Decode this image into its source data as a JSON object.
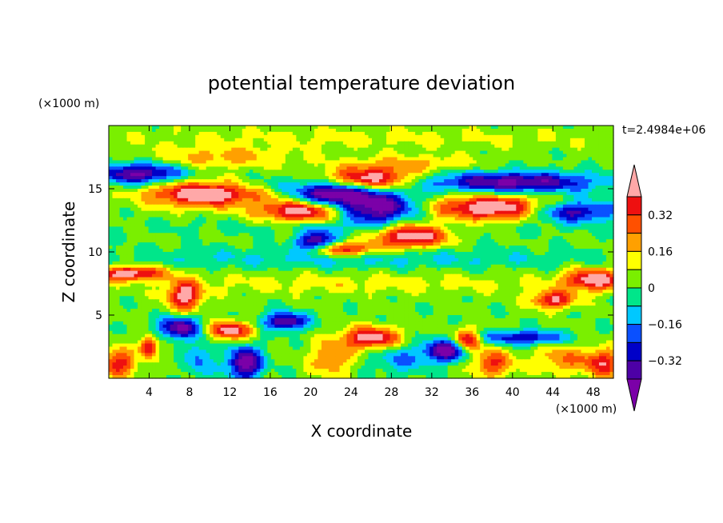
{
  "chart_data": {
    "type": "heatmap",
    "title": "potential temperature deviation",
    "xlabel": "X coordinate",
    "ylabel": "Z coordinate",
    "x_unit": "(×1000 m)",
    "z_unit": "(×1000 m)",
    "time_label": "t=2.4984e+06",
    "xlim": [
      0,
      50
    ],
    "ylim": [
      0,
      20
    ],
    "x_ticks": [
      4,
      8,
      12,
      16,
      20,
      24,
      28,
      32,
      36,
      40,
      44,
      48
    ],
    "x_tick_labels": [
      "4",
      "8",
      "12",
      "16",
      "20",
      "24",
      "28",
      "32",
      "36",
      "40",
      "44",
      "48"
    ],
    "y_ticks": [
      5,
      10,
      15
    ],
    "y_tick_labels": [
      "5",
      "10",
      "15"
    ],
    "colorbar": {
      "levels": [
        -0.4,
        -0.32,
        -0.24,
        -0.16,
        -0.08,
        0,
        0.08,
        0.16,
        0.24,
        0.32,
        0.4
      ],
      "labeled_levels": [
        0.32,
        0.16,
        0,
        -0.16,
        -0.32
      ],
      "labels": [
        "0.32",
        "0.16",
        "0",
        "−0.16",
        "−0.32"
      ],
      "colors": [
        "#7b00a8",
        "#4d00a6",
        "#0000c8",
        "#0a50ff",
        "#00c8ff",
        "#00e68a",
        "#7aef00",
        "#ffff00",
        "#ffa000",
        "#ff5000",
        "#ee1010",
        "#ffa8a8"
      ]
    },
    "background_value": 0.02,
    "features": [
      {
        "x": 3,
        "z": 16.2,
        "sx": 3.0,
        "sz": 0.6,
        "value": -0.45
      },
      {
        "x": 9.5,
        "z": 14.6,
        "sx": 4.0,
        "sz": 0.7,
        "value": 0.5
      },
      {
        "x": 19,
        "z": 13.2,
        "sx": 3.0,
        "sz": 0.6,
        "value": 0.45
      },
      {
        "x": 16,
        "z": 15.3,
        "sx": 3.5,
        "sz": 0.5,
        "value": -0.1
      },
      {
        "x": 22,
        "z": 14.6,
        "sx": 2.5,
        "sz": 0.6,
        "value": -0.48
      },
      {
        "x": 26.5,
        "z": 13.5,
        "sx": 2.8,
        "sz": 0.9,
        "value": -0.5
      },
      {
        "x": 26,
        "z": 15.8,
        "sx": 3.0,
        "sz": 0.6,
        "value": 0.45
      },
      {
        "x": 30,
        "z": 11.3,
        "sx": 2.5,
        "sz": 0.7,
        "value": 0.5
      },
      {
        "x": 23,
        "z": 10.2,
        "sx": 2.5,
        "sz": 0.4,
        "value": 0.4
      },
      {
        "x": 38,
        "z": 13.5,
        "sx": 4.0,
        "sz": 0.7,
        "value": 0.5
      },
      {
        "x": 40,
        "z": 15.5,
        "sx": 6.0,
        "sz": 0.6,
        "value": -0.45
      },
      {
        "x": 46,
        "z": 13.2,
        "sx": 3.0,
        "sz": 0.6,
        "value": -0.4
      },
      {
        "x": 21,
        "z": 11.0,
        "sx": 1.2,
        "sz": 0.6,
        "value": -0.25
      },
      {
        "x": 11,
        "z": 17.5,
        "sx": 5.0,
        "sz": 0.6,
        "value": 0.18
      },
      {
        "x": 30,
        "z": 17.0,
        "sx": 5.0,
        "sz": 0.5,
        "value": 0.15
      },
      {
        "x": 25,
        "z": 19.0,
        "sx": 20.0,
        "sz": 0.6,
        "value": 0.08
      },
      {
        "x": 2,
        "z": 8.3,
        "sx": 2.5,
        "sz": 0.4,
        "value": 0.45
      },
      {
        "x": 7.5,
        "z": 6.5,
        "sx": 1.2,
        "sz": 0.8,
        "value": 0.45
      },
      {
        "x": 48,
        "z": 7.8,
        "sx": 2.0,
        "sz": 0.6,
        "value": 0.45
      },
      {
        "x": 44,
        "z": 6.2,
        "sx": 1.5,
        "sz": 0.5,
        "value": 0.4
      },
      {
        "x": 25,
        "z": 12.0,
        "sx": 15.0,
        "sz": 0.5,
        "value": -0.06
      },
      {
        "x": 25,
        "z": 9.5,
        "sx": 18.0,
        "sz": 0.6,
        "value": -0.12
      },
      {
        "x": 25,
        "z": 7.5,
        "sx": 15.0,
        "sz": 0.6,
        "value": 0.1
      },
      {
        "x": 20,
        "z": 10.6,
        "sx": 1.2,
        "sz": 0.5,
        "value": -0.3
      },
      {
        "x": 7,
        "z": 4.0,
        "sx": 1.5,
        "sz": 0.6,
        "value": -0.45
      },
      {
        "x": 12,
        "z": 3.8,
        "sx": 1.5,
        "sz": 0.5,
        "value": 0.45
      },
      {
        "x": 13.5,
        "z": 1.2,
        "sx": 1.2,
        "sz": 0.9,
        "value": -0.5
      },
      {
        "x": 17.5,
        "z": 4.5,
        "sx": 1.5,
        "sz": 0.5,
        "value": -0.45
      },
      {
        "x": 26,
        "z": 3.2,
        "sx": 2.0,
        "sz": 0.6,
        "value": 0.45
      },
      {
        "x": 33.5,
        "z": 2.2,
        "sx": 1.5,
        "sz": 0.6,
        "value": -0.5
      },
      {
        "x": 35.5,
        "z": 3.0,
        "sx": 1.0,
        "sz": 0.6,
        "value": 0.45
      },
      {
        "x": 41,
        "z": 3.2,
        "sx": 3.0,
        "sz": 0.4,
        "value": -0.35
      },
      {
        "x": 1,
        "z": 1.2,
        "sx": 1.2,
        "sz": 0.8,
        "value": 0.35
      },
      {
        "x": 49,
        "z": 1.2,
        "sx": 1.2,
        "sz": 0.8,
        "value": 0.35
      },
      {
        "x": 4,
        "z": 2.5,
        "sx": 0.6,
        "sz": 0.6,
        "value": 0.42
      },
      {
        "x": 22,
        "z": 1.5,
        "sx": 1.5,
        "sz": 1.0,
        "value": 0.22
      },
      {
        "x": 29,
        "z": 1.5,
        "sx": 2.0,
        "sz": 0.8,
        "value": -0.18
      },
      {
        "x": 45,
        "z": 1.5,
        "sx": 2.0,
        "sz": 0.8,
        "value": 0.22
      },
      {
        "x": 38,
        "z": 1.2,
        "sx": 1.5,
        "sz": 0.8,
        "value": 0.3
      },
      {
        "x": 9,
        "z": 1.5,
        "sx": 1.0,
        "sz": 1.0,
        "value": -0.2
      }
    ]
  }
}
